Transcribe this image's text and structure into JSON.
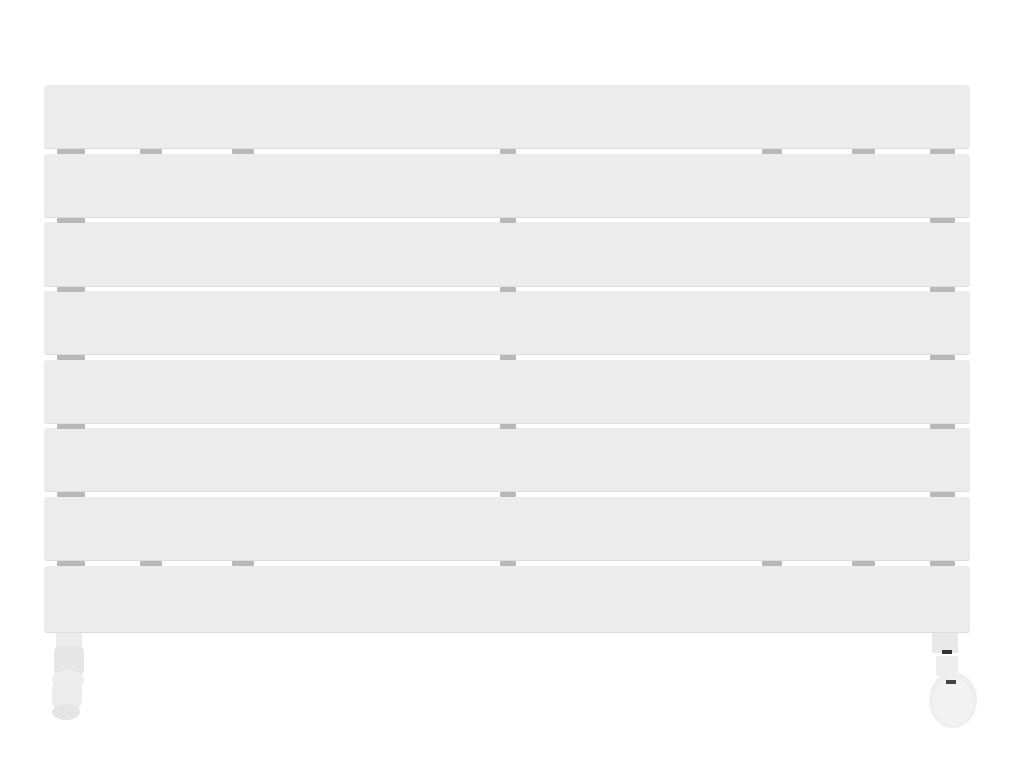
{
  "product": {
    "type": "horizontal flat-panel radiator",
    "panel_count": 8,
    "colors": {
      "panel": "#ececec",
      "connector": "#b8b8b8",
      "background": "#ffffff"
    },
    "valves": [
      "left-angle-valve",
      "right-thermostatic-valve"
    ]
  }
}
